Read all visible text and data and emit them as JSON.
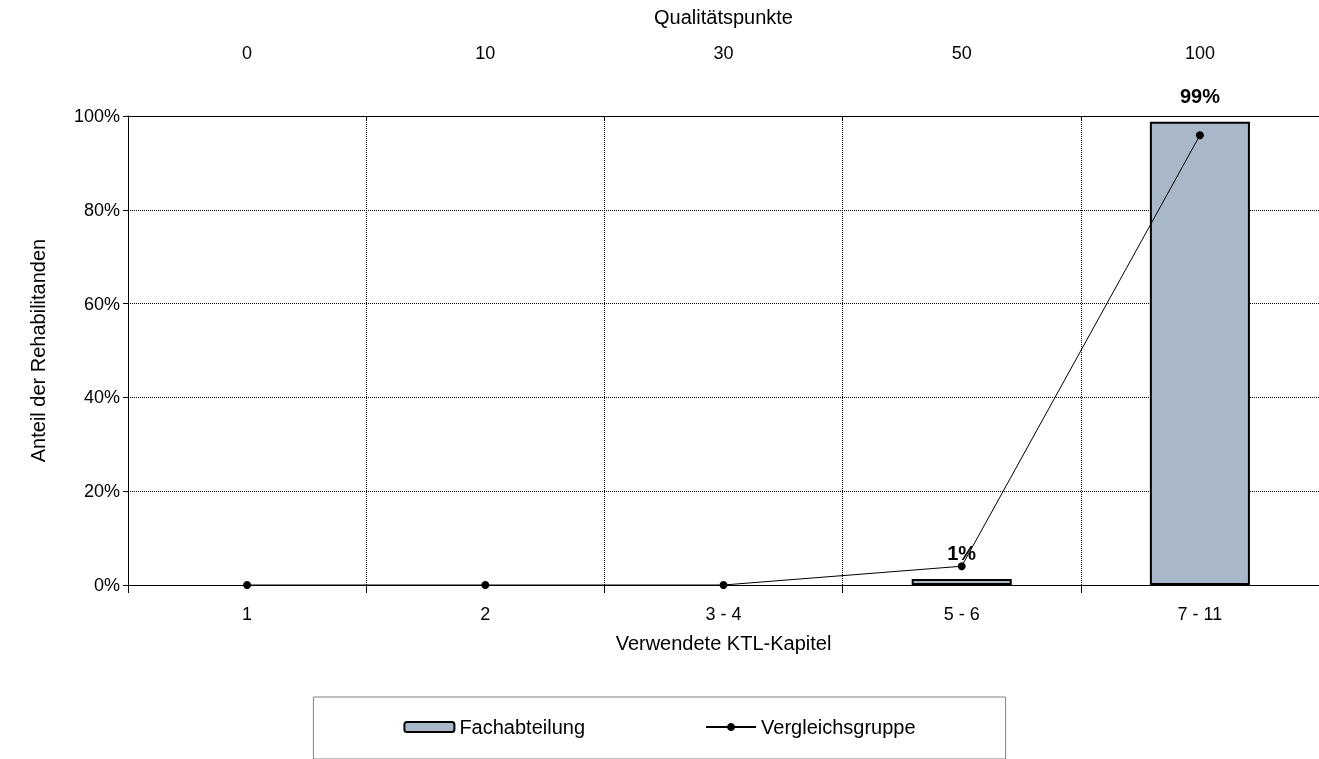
{
  "chart_data": {
    "type": "bar",
    "xlabel": "Verwendete KTL-Kapitel",
    "ylabel": "Anteil der Rehabilitanden",
    "x2label": "Qualitätspunkte",
    "categories": [
      "1",
      "2",
      "3 - 4",
      "5 - 6",
      "7 - 11"
    ],
    "series": [
      {
        "name": "Fachabteilung",
        "color": "#a9b8c8",
        "values": [
          0,
          0,
          0,
          1.3,
          98.8
        ],
        "value_labels": [
          null,
          null,
          null,
          "1%",
          "99%"
        ]
      },
      {
        "name": "Vergleichsgruppe",
        "type": "line",
        "color": "#000000",
        "values": [
          0,
          0,
          0,
          4,
          95.9
        ],
        "marker": "circle"
      }
    ],
    "annotations": [
      "0",
      "10",
      "30",
      "50",
      "100"
    ],
    "ylim": [
      0,
      100
    ],
    "yticks": [
      {
        "value": 0,
        "label": "0%"
      },
      {
        "value": 20,
        "label": "20%"
      },
      {
        "value": 40,
        "label": "40%"
      },
      {
        "value": 60,
        "label": "60%"
      },
      {
        "value": 80,
        "label": "80%"
      },
      {
        "value": 100,
        "label": "100%"
      }
    ],
    "grid": true,
    "legend": "bottom"
  }
}
